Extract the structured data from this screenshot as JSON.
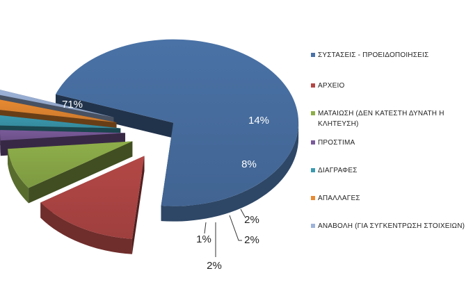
{
  "chart_data": {
    "type": "pie",
    "title": "",
    "style": "3d-exploded",
    "legend_position": "right",
    "slices": [
      {
        "label": "ΣΥΣΤΑΣΕΙΣ - ΠΡΟΕΙΔΟΠΟΙΗΣΕΙΣ",
        "value": 71,
        "display": "71%",
        "color": "#4A72A6"
      },
      {
        "label": "ΑΡΧΕΙΟ",
        "value": 14,
        "display": "14%",
        "color": "#B34846"
      },
      {
        "label": "ΜΑΤΑΙΩΣΗ (ΔΕΝ ΚΑΤΕΣΤΗ ΔΥΝΑΤΗ Η ΚΛΗΤΕΥΣΗ)",
        "value": 8,
        "display": "8%",
        "color": "#8EAE4A"
      },
      {
        "label": "ΠΡΟΣΤΙΜΑ",
        "value": 2,
        "display": "2%",
        "color": "#7A5B9A"
      },
      {
        "label": "ΔΙΑΓΡΑΦΕΣ",
        "value": 2,
        "display": "2%",
        "color": "#3B9AB0"
      },
      {
        "label": "ΑΠΑΛΛΑΓΕΣ",
        "value": 2,
        "display": "2%",
        "color": "#E88A32"
      },
      {
        "label": "ΑΝΑΒΟΛΗ (ΓΙΑ ΣΥΓΚΕΝΤΡΩΣΗ ΣΤΟΙΧΕΙΩΝ)",
        "value": 1,
        "display": "1%",
        "color": "#9DB3D9"
      }
    ]
  }
}
